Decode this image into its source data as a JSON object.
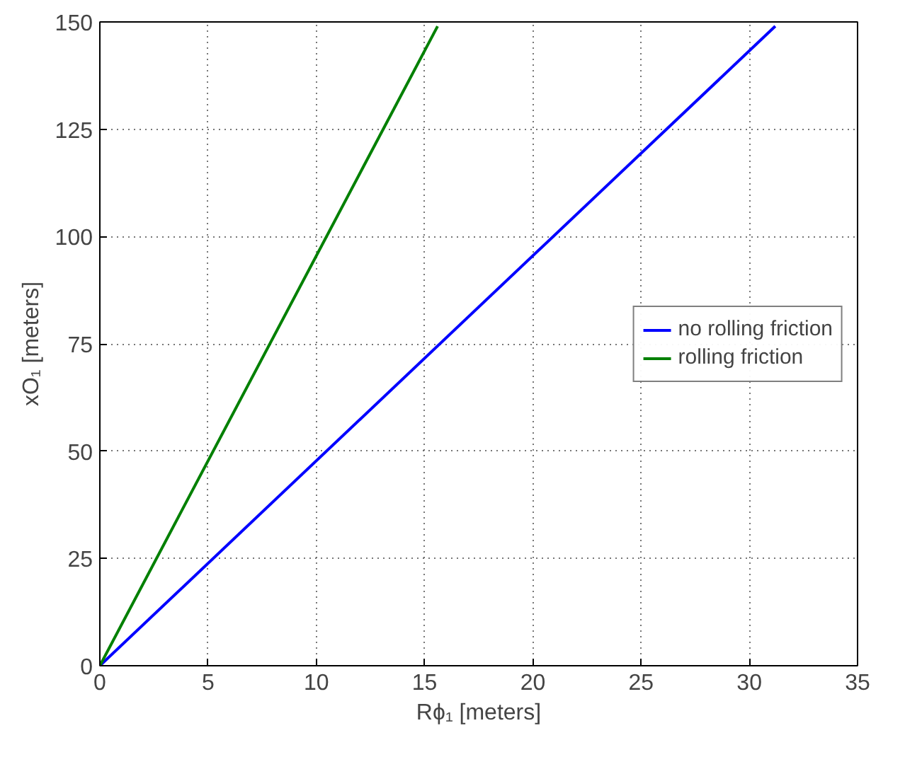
{
  "chart_data": {
    "type": "line",
    "xlabel": "Rϕ₁ [meters]",
    "ylabel": "xO₁ [meters]",
    "series": [
      {
        "name": "no rolling friction",
        "color": "#0000ff",
        "x": [
          0,
          31.2
        ],
        "values": [
          0,
          149
        ]
      },
      {
        "name": "rolling friction",
        "color": "#008000",
        "x": [
          0,
          15.6
        ],
        "values": [
          0,
          149
        ]
      }
    ],
    "xlim": [
      0,
      35
    ],
    "ylim": [
      0,
      150
    ],
    "xticks": [
      0,
      5,
      10,
      15,
      20,
      25,
      30,
      35
    ],
    "yticks": [
      0,
      25,
      50,
      75,
      100,
      125,
      150
    ],
    "grid": true,
    "legend": "right",
    "line_style": "solid",
    "marker": "none"
  }
}
